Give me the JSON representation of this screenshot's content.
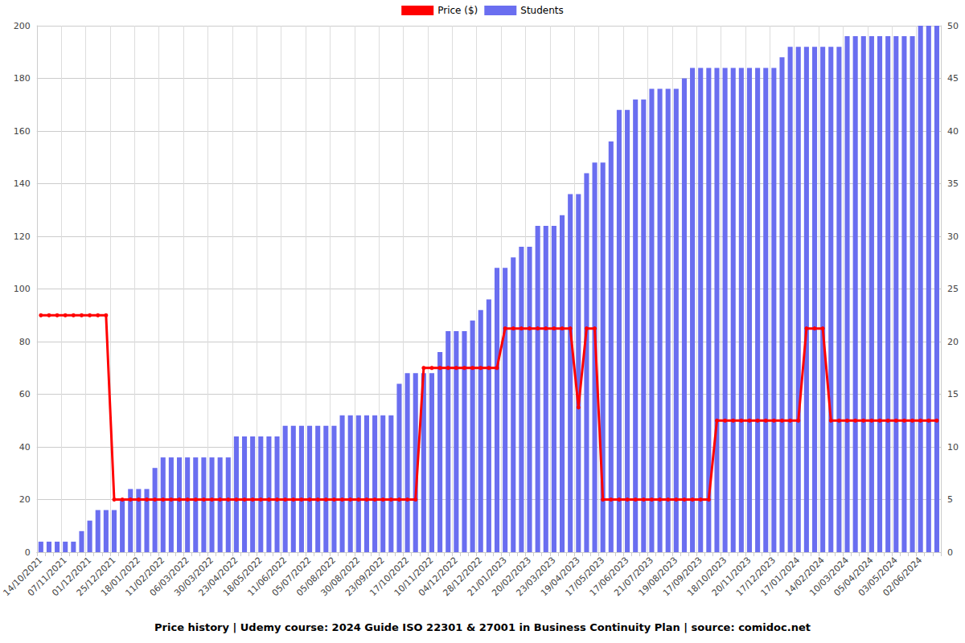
{
  "chart_data": {
    "type": "bar",
    "title": "Price history | Udemy course: 2024 Guide ISO 22301 & 27001 in Business Continuity Plan | source: comidoc.net",
    "categories": [
      "14/10/2021",
      null,
      null,
      "07/11/2021",
      null,
      null,
      "01/12/2021",
      null,
      null,
      "25/12/2021",
      null,
      null,
      "18/01/2022",
      null,
      null,
      "11/02/2022",
      null,
      null,
      "06/03/2022",
      null,
      null,
      "30/03/2022",
      null,
      null,
      "23/04/2022",
      null,
      null,
      "18/05/2022",
      null,
      null,
      "11/06/2022",
      null,
      null,
      "05/07/2022",
      null,
      null,
      "05/08/2022",
      null,
      null,
      "30/08/2022",
      null,
      null,
      "23/09/2022",
      null,
      null,
      "17/10/2022",
      null,
      null,
      "10/11/2022",
      null,
      null,
      "04/12/2022",
      null,
      null,
      "28/12/2022",
      null,
      null,
      "21/01/2023",
      null,
      null,
      "20/02/2023",
      null,
      null,
      "23/03/2023",
      null,
      null,
      "19/04/2023",
      null,
      null,
      "17/05/2023",
      null,
      null,
      "17/06/2023",
      null,
      null,
      "21/07/2023",
      null,
      null,
      "19/08/2023",
      null,
      null,
      "17/09/2023",
      null,
      null,
      "18/10/2023",
      null,
      null,
      "20/11/2023",
      null,
      null,
      "17/12/2023",
      null,
      null,
      "17/01/2024",
      null,
      null,
      "14/02/2024",
      null,
      null,
      "10/03/2024",
      null,
      null,
      "05/04/2024",
      null,
      null,
      "03/05/2024",
      null,
      null,
      "02/06/2024",
      null,
      null
    ],
    "series": [
      {
        "name": "Price ($)",
        "type": "line",
        "color": "#ff0000",
        "marker": "o",
        "axis": "y",
        "values": [
          90,
          90,
          90,
          90,
          90,
          90,
          90,
          90,
          90,
          20,
          20,
          20,
          20,
          20,
          20,
          20,
          20,
          20,
          20,
          20,
          20,
          20,
          20,
          20,
          20,
          20,
          20,
          20,
          20,
          20,
          20,
          20,
          20,
          20,
          20,
          20,
          20,
          20,
          20,
          20,
          20,
          20,
          20,
          20,
          20,
          20,
          20,
          70,
          70,
          70,
          70,
          70,
          70,
          70,
          70,
          70,
          70,
          85,
          85,
          85,
          85,
          85,
          85,
          85,
          85,
          85,
          55,
          85,
          85,
          20,
          20,
          20,
          20,
          20,
          20,
          20,
          20,
          20,
          20,
          20,
          20,
          20,
          20,
          50,
          50,
          50,
          50,
          50,
          50,
          50,
          50,
          50,
          50,
          50,
          85,
          85,
          85,
          50,
          50,
          50,
          50,
          50,
          50,
          50,
          50,
          50,
          50,
          50,
          50,
          50,
          50
        ]
      },
      {
        "name": "Students",
        "type": "bar",
        "color": "#6a6ef0",
        "axis": "y2",
        "values": [
          1,
          1,
          1,
          1,
          1,
          2,
          3,
          4,
          4,
          4,
          5,
          6,
          6,
          6,
          8,
          9,
          9,
          9,
          9,
          9,
          9,
          9,
          9,
          9,
          11,
          11,
          11,
          11,
          11,
          11,
          12,
          12,
          12,
          12,
          12,
          12,
          12,
          13,
          13,
          13,
          13,
          13,
          13,
          13,
          16,
          17,
          17,
          17,
          17,
          19,
          21,
          21,
          21,
          22,
          23,
          24,
          27,
          27,
          28,
          29,
          29,
          31,
          31,
          31,
          32,
          34,
          34,
          36,
          37,
          37,
          39,
          42,
          42,
          43,
          43,
          44,
          44,
          44,
          44,
          45,
          46,
          46,
          46,
          46,
          46,
          46,
          46,
          46,
          46,
          46,
          46,
          47,
          48,
          48,
          48,
          48,
          48,
          48,
          48,
          49,
          49,
          49,
          49,
          49,
          49,
          49,
          49,
          49,
          50,
          50,
          50
        ]
      }
    ],
    "ylim": [
      0,
      200
    ],
    "yticks": [
      0,
      20,
      40,
      60,
      80,
      100,
      120,
      140,
      160,
      180,
      200
    ],
    "y2lim": [
      0,
      50
    ],
    "y2ticks": [
      0,
      5,
      10,
      15,
      20,
      25,
      30,
      35,
      40,
      45,
      50
    ],
    "grid": true,
    "legend": "top"
  }
}
